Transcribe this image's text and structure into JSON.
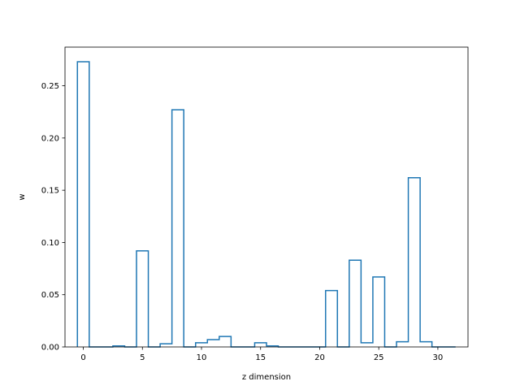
{
  "chart_data": {
    "type": "step",
    "title": "",
    "xlabel": "z dimension",
    "ylabel": "w",
    "xlim": [
      -1.55,
      32.55
    ],
    "ylim": [
      0,
      0.287
    ],
    "xticks": [
      0,
      5,
      10,
      15,
      20,
      25,
      30
    ],
    "yticks": [
      0.0,
      0.05,
      0.1,
      0.15,
      0.2,
      0.25
    ],
    "ytick_labels": [
      "0.00",
      "0.05",
      "0.10",
      "0.15",
      "0.20",
      "0.25"
    ],
    "step_where": "mid",
    "line_color": "#1f77b4",
    "grid": false,
    "x": [
      0,
      1,
      2,
      3,
      4,
      5,
      6,
      7,
      8,
      9,
      10,
      11,
      12,
      13,
      14,
      15,
      16,
      17,
      18,
      19,
      20,
      21,
      22,
      23,
      24,
      25,
      26,
      27,
      28,
      29,
      30,
      31
    ],
    "values": [
      0.273,
      0.0,
      0.0,
      0.001,
      0.0,
      0.092,
      0.0,
      0.003,
      0.227,
      0.0,
      0.004,
      0.007,
      0.01,
      0.0,
      0.0,
      0.004,
      0.001,
      0.0,
      0.0,
      0.0,
      0.0,
      0.054,
      0.0,
      0.083,
      0.004,
      0.067,
      0.0,
      0.005,
      0.162,
      0.005,
      0.0,
      0.0
    ]
  }
}
